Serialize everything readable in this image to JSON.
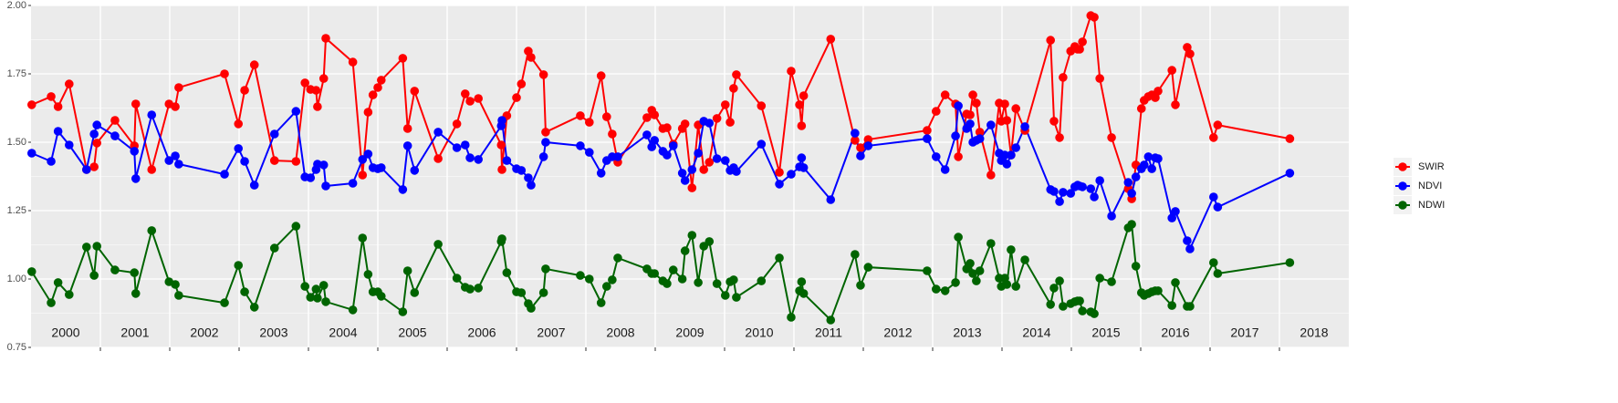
{
  "chart_data": {
    "type": "line",
    "legend": "right",
    "grid": true,
    "xlim": [
      2000,
      2019
    ],
    "ylim": [
      0.75,
      2.0
    ],
    "yticks": [
      {
        "value": 0.75,
        "label": "0.75"
      },
      {
        "value": 1.0,
        "label": "1.00"
      },
      {
        "value": 1.25,
        "label": "1.25"
      },
      {
        "value": 1.5,
        "label": "1.50"
      },
      {
        "value": 1.75,
        "label": "1.75"
      },
      {
        "value": 2.0,
        "label": "2.00"
      }
    ],
    "xticks": [
      {
        "value": 2000.5,
        "label": "2000"
      },
      {
        "value": 2001.5,
        "label": "2001"
      },
      {
        "value": 2002.5,
        "label": "2002"
      },
      {
        "value": 2003.5,
        "label": "2003"
      },
      {
        "value": 2004.5,
        "label": "2004"
      },
      {
        "value": 2005.5,
        "label": "2005"
      },
      {
        "value": 2006.5,
        "label": "2006"
      },
      {
        "value": 2007.5,
        "label": "2007"
      },
      {
        "value": 2008.5,
        "label": "2008"
      },
      {
        "value": 2009.5,
        "label": "2009"
      },
      {
        "value": 2010.5,
        "label": "2010"
      },
      {
        "value": 2011.5,
        "label": "2011"
      },
      {
        "value": 2012.5,
        "label": "2012"
      },
      {
        "value": 2013.5,
        "label": "2013"
      },
      {
        "value": 2014.5,
        "label": "2014"
      },
      {
        "value": 2015.5,
        "label": "2015"
      },
      {
        "value": 2016.5,
        "label": "2016"
      },
      {
        "value": 2017.5,
        "label": "2017"
      },
      {
        "value": 2018.5,
        "label": "2018"
      }
    ],
    "x": [
      2000.01,
      2000.29,
      2000.39,
      2000.55,
      2000.8,
      2000.91,
      2000.95,
      2001.21,
      2001.49,
      2001.51,
      2001.74,
      2001.99,
      2002.08,
      2002.13,
      2002.79,
      2002.99,
      2003.08,
      2003.22,
      2003.51,
      2003.82,
      2003.95,
      2004.03,
      2004.11,
      2004.13,
      2004.22,
      2004.25,
      2004.64,
      2004.78,
      2004.86,
      2004.93,
      2005.0,
      2005.05,
      2005.36,
      2005.43,
      2005.53,
      2005.87,
      2006.14,
      2006.26,
      2006.33,
      2006.45,
      2006.78,
      2006.79,
      2006.86,
      2007.0,
      2007.07,
      2007.17,
      2007.21,
      2007.39,
      2007.42,
      2007.92,
      2008.05,
      2008.22,
      2008.3,
      2008.38,
      2008.46,
      2008.88,
      2008.95,
      2008.99,
      2009.11,
      2009.17,
      2009.26,
      2009.39,
      2009.43,
      2009.53,
      2009.62,
      2009.7,
      2009.78,
      2009.89,
      2010.01,
      2010.08,
      2010.13,
      2010.17,
      2010.53,
      2010.79,
      2010.96,
      2011.08,
      2011.11,
      2011.14,
      2011.53,
      2011.88,
      2011.96,
      2012.07,
      2012.92,
      2013.05,
      2013.18,
      2013.33,
      2013.37,
      2013.49,
      2013.54,
      2013.58,
      2013.63,
      2013.68,
      2013.84,
      2013.96,
      2013.99,
      2014.04,
      2014.07,
      2014.13,
      2014.2,
      2014.33,
      2014.7,
      2014.75,
      2014.83,
      2014.88,
      2014.99,
      2015.05,
      2015.09,
      2015.12,
      2015.16,
      2015.28,
      2015.33,
      2015.41,
      2015.58,
      2015.82,
      2015.87,
      2015.93,
      2016.01,
      2016.05,
      2016.11,
      2016.16,
      2016.21,
      2016.25,
      2016.45,
      2016.5,
      2016.67,
      2016.71,
      2017.05,
      2017.11,
      2018.15
    ],
    "series": [
      {
        "name": "SWIR",
        "color": "#ff0000",
        "values": [
          1.637,
          1.667,
          1.63,
          1.713,
          1.4,
          1.41,
          1.497,
          1.58,
          1.487,
          1.64,
          1.4,
          1.64,
          1.63,
          1.7,
          1.75,
          1.567,
          1.69,
          1.783,
          1.433,
          1.43,
          1.717,
          1.693,
          1.69,
          1.63,
          1.733,
          1.88,
          1.793,
          1.38,
          1.61,
          1.673,
          1.7,
          1.727,
          1.807,
          1.55,
          1.687,
          1.44,
          1.567,
          1.677,
          1.65,
          1.66,
          1.49,
          1.4,
          1.597,
          1.663,
          1.713,
          1.833,
          1.81,
          1.747,
          1.537,
          1.597,
          1.573,
          1.743,
          1.593,
          1.53,
          1.427,
          1.59,
          1.617,
          1.6,
          1.55,
          1.553,
          1.493,
          1.55,
          1.567,
          1.333,
          1.563,
          1.4,
          1.427,
          1.587,
          1.637,
          1.573,
          1.697,
          1.747,
          1.633,
          1.39,
          1.76,
          1.637,
          1.56,
          1.67,
          1.877,
          1.507,
          1.48,
          1.51,
          1.543,
          1.613,
          1.673,
          1.64,
          1.447,
          1.603,
          1.6,
          1.673,
          1.643,
          1.537,
          1.38,
          1.643,
          1.577,
          1.64,
          1.58,
          1.453,
          1.623,
          1.543,
          1.873,
          1.577,
          1.517,
          1.737,
          1.833,
          1.85,
          1.84,
          1.84,
          1.867,
          1.963,
          1.957,
          1.733,
          1.517,
          1.33,
          1.293,
          1.417,
          1.623,
          1.653,
          1.667,
          1.673,
          1.663,
          1.687,
          1.763,
          1.637,
          1.847,
          1.823,
          1.517,
          1.563,
          1.513
        ]
      },
      {
        "name": "NDVI",
        "color": "#0000ff",
        "values": [
          1.46,
          1.43,
          1.54,
          1.49,
          1.4,
          1.53,
          1.563,
          1.523,
          1.467,
          1.367,
          1.6,
          1.433,
          1.45,
          1.42,
          1.383,
          1.477,
          1.43,
          1.343,
          1.53,
          1.613,
          1.373,
          1.37,
          1.4,
          1.42,
          1.417,
          1.34,
          1.35,
          1.437,
          1.457,
          1.407,
          1.403,
          1.407,
          1.327,
          1.487,
          1.397,
          1.537,
          1.48,
          1.49,
          1.443,
          1.437,
          1.56,
          1.58,
          1.433,
          1.403,
          1.397,
          1.37,
          1.343,
          1.447,
          1.5,
          1.487,
          1.463,
          1.387,
          1.433,
          1.447,
          1.447,
          1.527,
          1.483,
          1.507,
          1.467,
          1.453,
          1.487,
          1.387,
          1.36,
          1.4,
          1.46,
          1.577,
          1.57,
          1.44,
          1.433,
          1.397,
          1.407,
          1.393,
          1.493,
          1.347,
          1.383,
          1.41,
          1.443,
          1.407,
          1.29,
          1.533,
          1.45,
          1.487,
          1.513,
          1.447,
          1.4,
          1.523,
          1.633,
          1.55,
          1.567,
          1.5,
          1.507,
          1.513,
          1.563,
          1.46,
          1.433,
          1.453,
          1.42,
          1.453,
          1.48,
          1.557,
          1.327,
          1.32,
          1.283,
          1.317,
          1.313,
          1.337,
          1.343,
          1.34,
          1.337,
          1.33,
          1.3,
          1.36,
          1.23,
          1.353,
          1.313,
          1.373,
          1.403,
          1.417,
          1.447,
          1.403,
          1.443,
          1.44,
          1.223,
          1.247,
          1.14,
          1.11,
          1.3,
          1.263,
          1.387
        ]
      },
      {
        "name": "NDWI",
        "color": "#006400",
        "values": [
          1.027,
          0.913,
          0.987,
          0.943,
          1.117,
          1.013,
          1.12,
          1.033,
          1.023,
          0.947,
          1.177,
          0.99,
          0.98,
          0.94,
          0.913,
          1.05,
          0.953,
          0.897,
          1.113,
          1.193,
          0.973,
          0.933,
          0.963,
          0.93,
          0.977,
          0.917,
          0.887,
          1.15,
          1.017,
          0.953,
          0.953,
          0.937,
          0.88,
          1.03,
          0.95,
          1.127,
          1.003,
          0.97,
          0.963,
          0.967,
          1.137,
          1.147,
          1.023,
          0.953,
          0.95,
          0.91,
          0.893,
          0.95,
          1.037,
          1.013,
          1,
          0.913,
          0.973,
          0.997,
          1.077,
          1.037,
          1.02,
          1.02,
          0.993,
          0.983,
          1.033,
          1,
          1.103,
          1.16,
          0.987,
          1.12,
          1.137,
          0.983,
          0.94,
          0.99,
          0.997,
          0.933,
          0.993,
          1.077,
          0.86,
          0.957,
          0.99,
          0.947,
          0.85,
          1.09,
          0.977,
          1.043,
          1.03,
          0.963,
          0.957,
          0.987,
          1.153,
          1.037,
          1.057,
          1.02,
          0.993,
          1.03,
          1.13,
          1.003,
          0.973,
          1.003,
          0.98,
          1.107,
          0.973,
          1.07,
          0.907,
          0.967,
          0.993,
          0.9,
          0.91,
          0.917,
          0.92,
          0.92,
          0.883,
          0.88,
          0.873,
          1.003,
          0.99,
          1.187,
          1.2,
          1.047,
          0.95,
          0.94,
          0.947,
          0.953,
          0.957,
          0.957,
          0.903,
          0.987,
          0.9,
          0.9,
          1.06,
          1.02,
          1.06
        ]
      }
    ]
  }
}
